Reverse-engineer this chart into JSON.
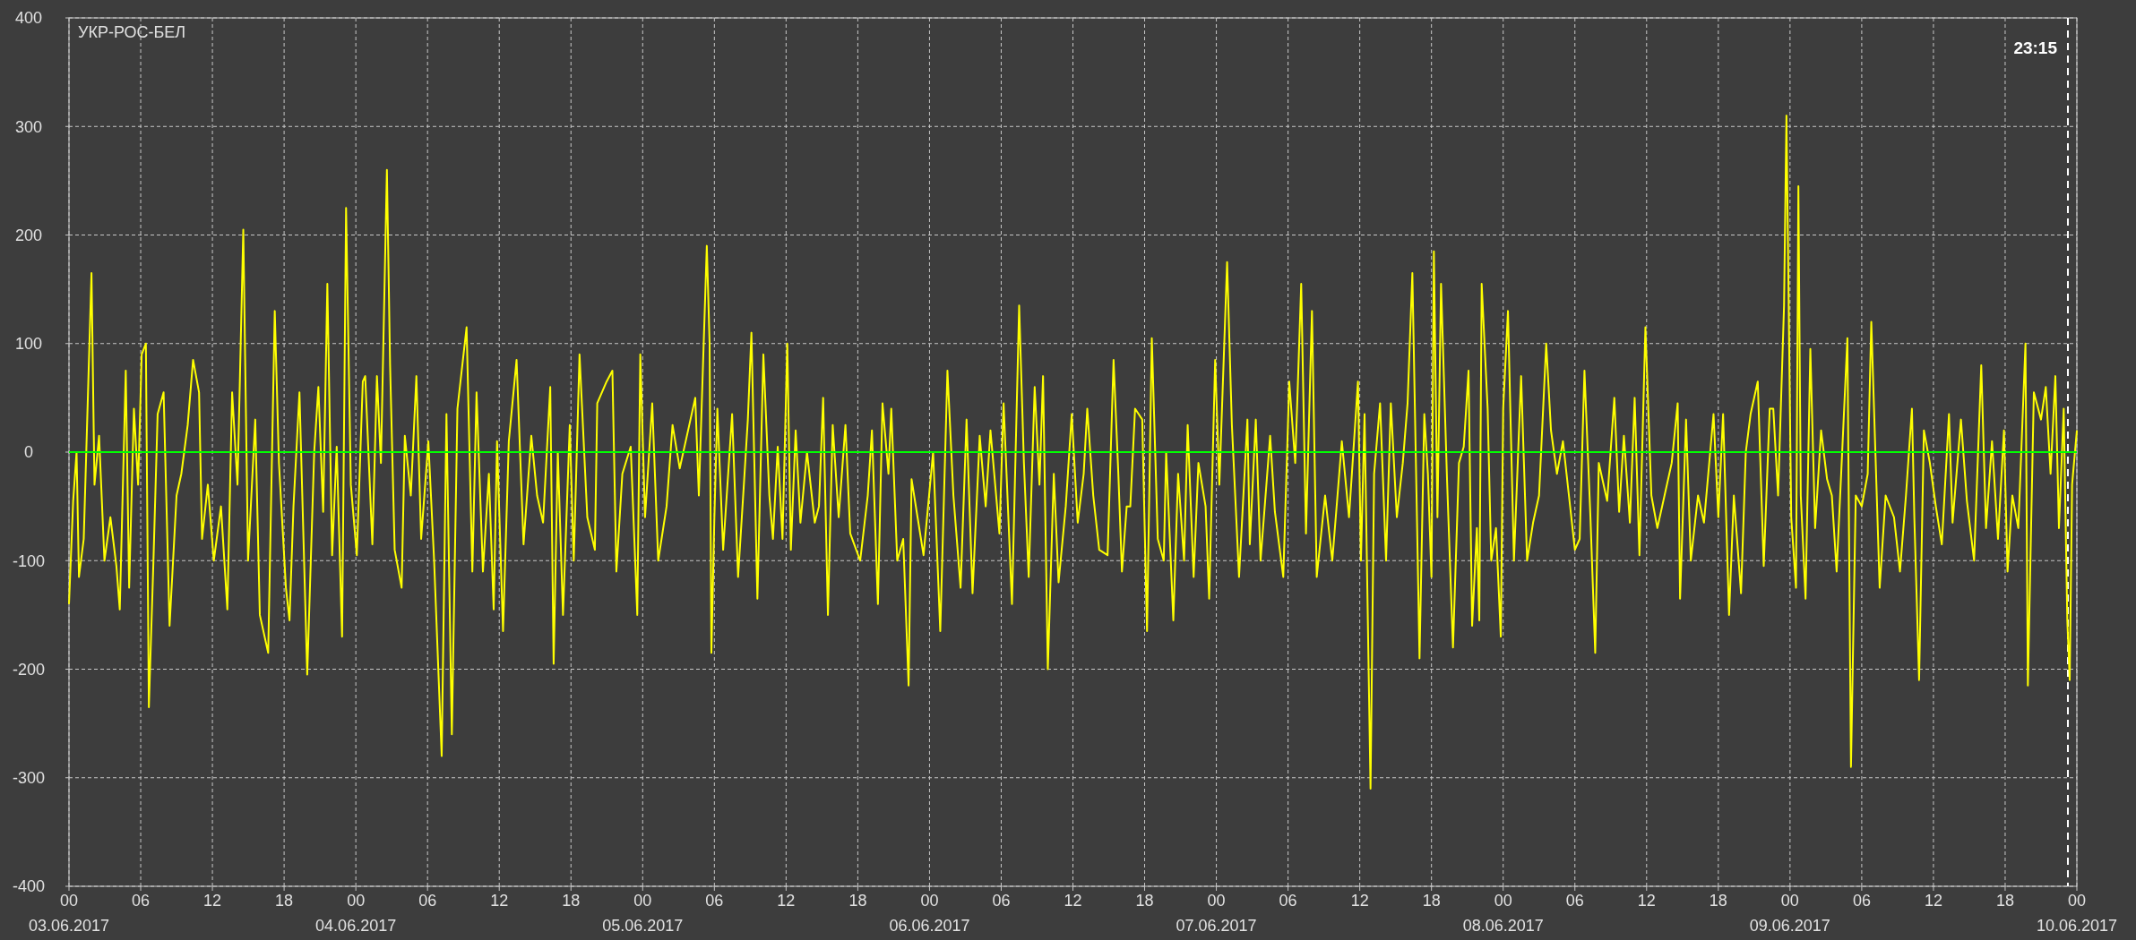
{
  "chart_data": {
    "type": "line",
    "title": "УКР-РОС-БЕЛ",
    "x": [
      "2017-06-03T00:00",
      "2017-06-03T00:21",
      "2017-06-03T00:38",
      "2017-06-03T00:50",
      "2017-06-03T01:14",
      "2017-06-03T01:53",
      "2017-06-03T02:08",
      "2017-06-03T02:31",
      "2017-06-03T02:58",
      "2017-06-03T03:28",
      "2017-06-03T03:58",
      "2017-06-03T04:15",
      "2017-06-03T04:45",
      "2017-06-03T05:02",
      "2017-06-03T05:26",
      "2017-06-03T05:47",
      "2017-06-03T06:05",
      "2017-06-03T06:26",
      "2017-06-03T06:41",
      "2017-06-03T07:04",
      "2017-06-03T07:25",
      "2017-06-03T07:55",
      "2017-06-03T08:25",
      "2017-06-03T09:00",
      "2017-06-03T09:24",
      "2017-06-03T09:56",
      "2017-06-03T10:23",
      "2017-06-03T10:53",
      "2017-06-03T11:08",
      "2017-06-03T11:37",
      "2017-06-03T12:07",
      "2017-06-03T12:43",
      "2017-06-03T13:15",
      "2017-06-03T13:39",
      "2017-06-03T14:06",
      "2017-06-03T14:35",
      "2017-06-03T14:59",
      "2017-06-03T15:35",
      "2017-06-03T15:58",
      "2017-06-03T16:40",
      "2017-06-03T17:13",
      "2017-06-03T17:34",
      "2017-06-03T18:09",
      "2017-06-03T18:27",
      "2017-06-03T18:47",
      "2017-06-03T19:17",
      "2017-06-03T19:56",
      "2017-06-03T20:31",
      "2017-06-03T20:52",
      "2017-06-03T21:16",
      "2017-06-03T21:37",
      "2017-06-03T22:01",
      "2017-06-03T22:24",
      "2017-06-03T22:51",
      "2017-06-03T23:11",
      "2017-06-03T23:35",
      "2017-06-04T00:05",
      "2017-06-04T00:35",
      "2017-06-04T00:47",
      "2017-06-04T01:23",
      "2017-06-04T01:46",
      "2017-06-04T02:06",
      "2017-06-04T02:36",
      "2017-06-04T02:52",
      "2017-06-04T03:15",
      "2017-06-04T03:50",
      "2017-06-04T04:06",
      "2017-06-04T04:36",
      "2017-06-04T05:04",
      "2017-06-04T05:28",
      "2017-06-04T06:04",
      "2017-06-04T06:33",
      "2017-06-04T07:11",
      "2017-06-04T07:35",
      "2017-06-04T08:02",
      "2017-06-04T08:30",
      "2017-06-04T09:16",
      "2017-06-04T09:45",
      "2017-06-04T10:06",
      "2017-06-04T10:38",
      "2017-06-04T11:08",
      "2017-06-04T11:32",
      "2017-06-04T11:49",
      "2017-06-04T12:19",
      "2017-06-04T12:48",
      "2017-06-04T13:27",
      "2017-06-04T14:02",
      "2017-06-04T14:41",
      "2017-06-04T15:10",
      "2017-06-04T15:40",
      "2017-06-04T16:16",
      "2017-06-04T16:33",
      "2017-06-04T16:54",
      "2017-06-04T17:20",
      "2017-06-04T17:54",
      "2017-06-04T18:14",
      "2017-06-04T18:43",
      "2017-06-04T19:22",
      "2017-06-04T20:00",
      "2017-06-04T20:12",
      "2017-06-04T20:59",
      "2017-06-04T21:28",
      "2017-06-04T21:48",
      "2017-06-04T22:18",
      "2017-06-04T23:00",
      "2017-06-04T23:33",
      "2017-06-04T23:48",
      "2017-06-05T00:12",
      "2017-06-05T00:48",
      "2017-06-05T01:18",
      "2017-06-05T02:00",
      "2017-06-05T02:30",
      "2017-06-05T03:06",
      "2017-06-05T04:00",
      "2017-06-05T04:24",
      "2017-06-05T04:42",
      "2017-06-05T05:22",
      "2017-06-05T05:36",
      "2017-06-05T05:45",
      "2017-06-05T06:00",
      "2017-06-05T06:15",
      "2017-06-05T06:44",
      "2017-06-05T07:29",
      "2017-06-05T07:59",
      "2017-06-05T08:28",
      "2017-06-05T08:48",
      "2017-06-05T09:06",
      "2017-06-05T09:36",
      "2017-06-05T10:06",
      "2017-06-05T10:36",
      "2017-06-05T10:54",
      "2017-06-05T11:18",
      "2017-06-05T11:42",
      "2017-06-05T12:06",
      "2017-06-05T12:24",
      "2017-06-05T12:48",
      "2017-06-05T13:12",
      "2017-06-05T13:45",
      "2017-06-05T14:24",
      "2017-06-05T14:45",
      "2017-06-05T15:06",
      "2017-06-05T15:30",
      "2017-06-05T15:54",
      "2017-06-05T16:24",
      "2017-06-05T16:58",
      "2017-06-05T17:22",
      "2017-06-05T18:12",
      "2017-06-05T18:50",
      "2017-06-05T19:11",
      "2017-06-05T19:41",
      "2017-06-05T20:04",
      "2017-06-05T20:34",
      "2017-06-05T20:48",
      "2017-06-05T21:18",
      "2017-06-05T21:48",
      "2017-06-05T22:15",
      "2017-06-05T22:30",
      "2017-06-05T23:00",
      "2017-06-05T23:30",
      "2017-06-06T00:18",
      "2017-06-06T00:54",
      "2017-06-06T01:30",
      "2017-06-06T02:00",
      "2017-06-06T02:36",
      "2017-06-06T03:06",
      "2017-06-06T03:36",
      "2017-06-06T04:12",
      "2017-06-06T04:42",
      "2017-06-06T05:06",
      "2017-06-06T05:51",
      "2017-06-06T06:12",
      "2017-06-06T06:54",
      "2017-06-06T07:30",
      "2017-06-06T07:54",
      "2017-06-06T08:18",
      "2017-06-06T08:48",
      "2017-06-06T09:12",
      "2017-06-06T09:30",
      "2017-06-06T09:54",
      "2017-06-06T10:24",
      "2017-06-06T10:48",
      "2017-06-06T11:24",
      "2017-06-06T11:54",
      "2017-06-06T12:24",
      "2017-06-06T12:54",
      "2017-06-06T13:12",
      "2017-06-06T13:42",
      "2017-06-06T14:12",
      "2017-06-06T14:54",
      "2017-06-06T15:24",
      "2017-06-06T15:48",
      "2017-06-06T16:06",
      "2017-06-06T16:30",
      "2017-06-06T16:48",
      "2017-06-06T17:12",
      "2017-06-06T17:48",
      "2017-06-06T18:12",
      "2017-06-06T18:36",
      "2017-06-06T19:06",
      "2017-06-06T19:36",
      "2017-06-06T19:48",
      "2017-06-06T20:24",
      "2017-06-06T20:48",
      "2017-06-06T21:18",
      "2017-06-06T21:36",
      "2017-06-06T22:06",
      "2017-06-06T22:30",
      "2017-06-06T23:06",
      "2017-06-06T23:24",
      "2017-06-06T23:54",
      "2017-06-07T00:15",
      "2017-06-07T00:54",
      "2017-06-07T01:18",
      "2017-06-07T01:54",
      "2017-06-07T02:36",
      "2017-06-07T02:48",
      "2017-06-07T03:18",
      "2017-06-07T03:42",
      "2017-06-07T04:30",
      "2017-06-07T04:54",
      "2017-06-07T05:36",
      "2017-06-07T06:06",
      "2017-06-07T06:36",
      "2017-06-07T07:06",
      "2017-06-07T07:30",
      "2017-06-07T08:00",
      "2017-06-07T08:24",
      "2017-06-07T09:06",
      "2017-06-07T09:42",
      "2017-06-07T10:30",
      "2017-06-07T11:06",
      "2017-06-07T11:51",
      "2017-06-07T12:06",
      "2017-06-07T12:24",
      "2017-06-07T12:54",
      "2017-06-07T13:12",
      "2017-06-07T13:42",
      "2017-06-07T14:12",
      "2017-06-07T14:36",
      "2017-06-07T15:06",
      "2017-06-07T15:36",
      "2017-06-07T16:00",
      "2017-06-07T16:24",
      "2017-06-07T16:48",
      "2017-06-07T17:00",
      "2017-06-07T17:24",
      "2017-06-07T17:42",
      "2017-06-07T18:00",
      "2017-06-07T18:12",
      "2017-06-07T18:30",
      "2017-06-07T18:48",
      "2017-06-07T19:18",
      "2017-06-07T19:48",
      "2017-06-07T20:18",
      "2017-06-07T20:42",
      "2017-06-07T21:06",
      "2017-06-07T21:24",
      "2017-06-07T21:48",
      "2017-06-07T22:00",
      "2017-06-07T22:12",
      "2017-06-07T22:42",
      "2017-06-07T23:00",
      "2017-06-07T23:24",
      "2017-06-07T23:48",
      "2017-06-08T00:00",
      "2017-06-08T00:24",
      "2017-06-08T00:54",
      "2017-06-08T01:30",
      "2017-06-08T02:00",
      "2017-06-08T02:30",
      "2017-06-08T03:00",
      "2017-06-08T03:36",
      "2017-06-08T04:00",
      "2017-06-08T04:30",
      "2017-06-08T05:00",
      "2017-06-08T05:30",
      "2017-06-08T06:00",
      "2017-06-08T06:24",
      "2017-06-08T06:48",
      "2017-06-08T07:18",
      "2017-06-08T07:42",
      "2017-06-08T08:00",
      "2017-06-08T08:42",
      "2017-06-08T09:18",
      "2017-06-08T09:42",
      "2017-06-08T10:06",
      "2017-06-08T10:36",
      "2017-06-08T11:00",
      "2017-06-08T11:24",
      "2017-06-08T11:54",
      "2017-06-08T12:24",
      "2017-06-08T12:54",
      "2017-06-08T13:30",
      "2017-06-08T14:06",
      "2017-06-08T14:36",
      "2017-06-08T14:48",
      "2017-06-08T15:18",
      "2017-06-08T15:42",
      "2017-06-08T16:18",
      "2017-06-08T16:48",
      "2017-06-08T17:36",
      "2017-06-08T18:00",
      "2017-06-08T18:24",
      "2017-06-08T18:54",
      "2017-06-08T19:18",
      "2017-06-08T19:54",
      "2017-06-08T20:18",
      "2017-06-08T20:42",
      "2017-06-08T21:18",
      "2017-06-08T21:48",
      "2017-06-08T22:18",
      "2017-06-08T22:36",
      "2017-06-08T23:00",
      "2017-06-08T23:30",
      "2017-06-08T23:42",
      "2017-06-09T00:06",
      "2017-06-09T00:30",
      "2017-06-09T00:42",
      "2017-06-09T00:54",
      "2017-06-09T01:18",
      "2017-06-09T01:42",
      "2017-06-09T02:06",
      "2017-06-09T02:36",
      "2017-06-09T03:06",
      "2017-06-09T03:30",
      "2017-06-09T03:54",
      "2017-06-09T04:18",
      "2017-06-09T04:48",
      "2017-06-09T05:06",
      "2017-06-09T05:30",
      "2017-06-09T06:00",
      "2017-06-09T06:30",
      "2017-06-09T06:48",
      "2017-06-09T07:30",
      "2017-06-09T08:00",
      "2017-06-09T08:42",
      "2017-06-09T09:12",
      "2017-06-09T09:42",
      "2017-06-09T10:12",
      "2017-06-09T10:24",
      "2017-06-09T10:48",
      "2017-06-09T11:12",
      "2017-06-09T11:42",
      "2017-06-09T12:12",
      "2017-06-09T12:42",
      "2017-06-09T13:18",
      "2017-06-09T13:36",
      "2017-06-09T14:18",
      "2017-06-09T14:48",
      "2017-06-09T15:24",
      "2017-06-09T16:00",
      "2017-06-09T16:24",
      "2017-06-09T16:54",
      "2017-06-09T17:24",
      "2017-06-09T17:54",
      "2017-06-09T18:12",
      "2017-06-09T18:36",
      "2017-06-09T19:06",
      "2017-06-09T19:42",
      "2017-06-09T19:54",
      "2017-06-09T20:24",
      "2017-06-09T21:00",
      "2017-06-09T21:24",
      "2017-06-09T21:48",
      "2017-06-09T22:12",
      "2017-06-09T22:30",
      "2017-06-09T22:54",
      "2017-06-09T23:12",
      "2017-06-09T23:24",
      "2017-06-09T23:36",
      "2017-06-10T00:00"
    ],
    "series": [
      {
        "color": "#ffff00",
        "values": [
          -140,
          -45,
          0,
          -115,
          -80,
          165,
          -30,
          15,
          -100,
          -60,
          -105,
          -145,
          75,
          -125,
          40,
          -30,
          90,
          100,
          -235,
          -100,
          35,
          55,
          -160,
          -40,
          -20,
          25,
          85,
          55,
          -80,
          -30,
          -100,
          -50,
          -145,
          55,
          -30,
          205,
          -100,
          30,
          -150,
          -185,
          130,
          -10,
          -125,
          -155,
          -50,
          55,
          -205,
          0,
          60,
          -55,
          155,
          -95,
          5,
          -170,
          225,
          -30,
          -95,
          65,
          70,
          -85,
          70,
          -10,
          260,
          80,
          -90,
          -125,
          15,
          -40,
          70,
          -80,
          10,
          -100,
          -280,
          35,
          -260,
          40,
          115,
          -110,
          55,
          -110,
          -20,
          -145,
          10,
          -165,
          10,
          85,
          -85,
          15,
          -40,
          -65,
          60,
          -195,
          0,
          -150,
          25,
          -100,
          90,
          -60,
          -90,
          45,
          65,
          75,
          -110,
          -20,
          5,
          -150,
          90,
          -60,
          45,
          -100,
          -50,
          25,
          -15,
          30,
          50,
          -40,
          190,
          100,
          -185,
          -60,
          40,
          -90,
          35,
          -115,
          -30,
          30,
          110,
          -135,
          90,
          -40,
          -80,
          5,
          -80,
          100,
          -90,
          20,
          -65,
          0,
          -65,
          -50,
          50,
          -150,
          25,
          -60,
          25,
          -75,
          -100,
          -40,
          20,
          -140,
          45,
          -20,
          40,
          -100,
          -80,
          -215,
          -25,
          -60,
          -95,
          0,
          -165,
          75,
          -40,
          -125,
          30,
          -130,
          15,
          -50,
          20,
          -75,
          45,
          -140,
          135,
          -10,
          -115,
          60,
          -30,
          70,
          -200,
          -20,
          -120,
          -50,
          35,
          -65,
          -20,
          40,
          -40,
          -90,
          -95,
          85,
          -20,
          -110,
          -50,
          -50,
          40,
          30,
          -165,
          105,
          -80,
          -100,
          0,
          -155,
          -20,
          -100,
          25,
          -115,
          -10,
          -50,
          -135,
          85,
          -30,
          175,
          25,
          -115,
          30,
          -85,
          30,
          -100,
          15,
          -55,
          -115,
          65,
          -10,
          155,
          -75,
          130,
          -115,
          -40,
          -100,
          10,
          -60,
          65,
          -100,
          35,
          -310,
          -20,
          45,
          -100,
          45,
          -60,
          -10,
          45,
          165,
          -70,
          -190,
          35,
          -20,
          -115,
          185,
          -60,
          155,
          -25,
          -180,
          -10,
          5,
          75,
          -160,
          -70,
          -155,
          155,
          40,
          -100,
          -70,
          -170,
          40,
          130,
          -100,
          70,
          -100,
          -65,
          -40,
          100,
          20,
          -20,
          10,
          -40,
          -90,
          -80,
          75,
          -60,
          -185,
          -10,
          -45,
          50,
          -55,
          15,
          -65,
          50,
          -95,
          115,
          -40,
          -70,
          -40,
          -10,
          45,
          -135,
          30,
          -100,
          -40,
          -65,
          35,
          -60,
          35,
          -150,
          -40,
          -130,
          0,
          35,
          65,
          -105,
          40,
          40,
          -40,
          135,
          310,
          -60,
          -125,
          245,
          -40,
          -135,
          95,
          -70,
          20,
          -25,
          -40,
          -110,
          -15,
          105,
          -290,
          -40,
          -50,
          -20,
          120,
          -125,
          -40,
          -60,
          -110,
          -40,
          40,
          -60,
          -210,
          20,
          -10,
          -50,
          -85,
          35,
          -65,
          30,
          -45,
          -100,
          80,
          -70,
          10,
          -80,
          20,
          -110,
          -40,
          -70,
          100,
          -215,
          55,
          30,
          60,
          -20,
          70,
          -70,
          40,
          -155,
          -210,
          -30,
          20
        ]
      }
    ],
    "xlim": [
      "2017-06-03T00:00",
      "2017-06-10T00:00"
    ],
    "xticks": [
      {
        "value": "2017-06-03T00:00",
        "label": "00\n03.06.2017"
      },
      {
        "value": "2017-06-03T06:00",
        "label": "06"
      },
      {
        "value": "2017-06-03T12:00",
        "label": "12"
      },
      {
        "value": "2017-06-03T18:00",
        "label": "18"
      },
      {
        "value": "2017-06-04T00:00",
        "label": "00\n04.06.2017"
      },
      {
        "value": "2017-06-04T06:00",
        "label": "06"
      },
      {
        "value": "2017-06-04T12:00",
        "label": "12"
      },
      {
        "value": "2017-06-04T18:00",
        "label": "18"
      },
      {
        "value": "2017-06-05T00:00",
        "label": "00\n05.06.2017"
      },
      {
        "value": "2017-06-05T06:00",
        "label": "06"
      },
      {
        "value": "2017-06-05T12:00",
        "label": "12"
      },
      {
        "value": "2017-06-05T18:00",
        "label": "18"
      },
      {
        "value": "2017-06-06T00:00",
        "label": "00\n06.06.2017"
      },
      {
        "value": "2017-06-06T06:00",
        "label": "06"
      },
      {
        "value": "2017-06-06T12:00",
        "label": "12"
      },
      {
        "value": "2017-06-06T18:00",
        "label": "18"
      },
      {
        "value": "2017-06-07T00:00",
        "label": "00\n07.06.2017"
      },
      {
        "value": "2017-06-07T06:00",
        "label": "06"
      },
      {
        "value": "2017-06-07T12:00",
        "label": "12"
      },
      {
        "value": "2017-06-07T18:00",
        "label": "18"
      },
      {
        "value": "2017-06-08T00:00",
        "label": "00\n08.06.2017"
      },
      {
        "value": "2017-06-08T06:00",
        "label": "06"
      },
      {
        "value": "2017-06-08T12:00",
        "label": "12"
      },
      {
        "value": "2017-06-08T18:00",
        "label": "18"
      },
      {
        "value": "2017-06-09T00:00",
        "label": "00\n09.06.2017"
      },
      {
        "value": "2017-06-09T06:00",
        "label": "06"
      },
      {
        "value": "2017-06-09T12:00",
        "label": "12"
      },
      {
        "value": "2017-06-09T18:00",
        "label": "18"
      },
      {
        "value": "2017-06-10T00:00",
        "label": "00\n10.06.2017"
      }
    ],
    "ylim": [
      -400,
      400
    ],
    "yticks": [
      -400,
      -300,
      -200,
      -100,
      0,
      100,
      200,
      300,
      400
    ],
    "grid": true,
    "marker": "none",
    "line_style": "solid",
    "ref_lines": [
      {
        "axis": "y",
        "value": 0,
        "color": "#00ff00",
        "line_style": "solid"
      },
      {
        "axis": "x",
        "value": "2017-06-09T23:15",
        "label": "23:15",
        "color": "#ffffff",
        "line_style": "dashed"
      }
    ]
  }
}
